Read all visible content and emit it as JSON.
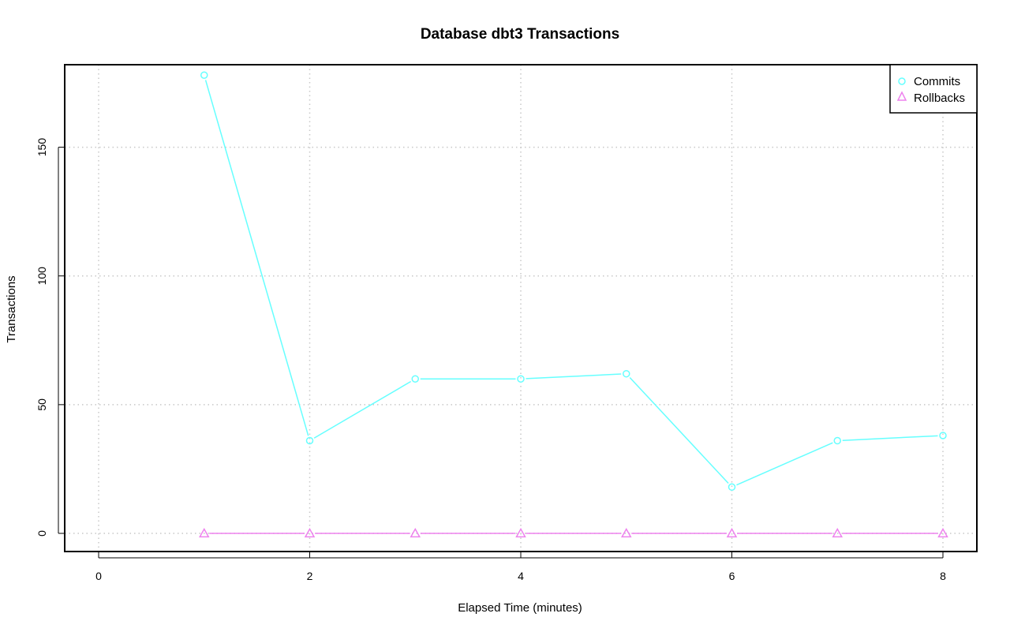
{
  "chart_data": {
    "type": "line",
    "title": "Database dbt3 Transactions",
    "xlabel": "Elapsed Time (minutes)",
    "ylabel": "Transactions",
    "xlim": [
      0,
      8
    ],
    "ylim": [
      0,
      175
    ],
    "x_ticks": [
      0,
      2,
      4,
      6,
      8
    ],
    "y_ticks": [
      0,
      50,
      100,
      150
    ],
    "grid": true,
    "legend_position": "top-right",
    "x": [
      1,
      2,
      3,
      4,
      5,
      6,
      7,
      8
    ],
    "series": [
      {
        "name": "Commits",
        "values": [
          178,
          36,
          60,
          60,
          62,
          18,
          36,
          38
        ],
        "color": "#66ffff",
        "marker": "circle"
      },
      {
        "name": "Rollbacks",
        "values": [
          0,
          0,
          0,
          0,
          0,
          0,
          0,
          0
        ],
        "color": "#ee82ee",
        "marker": "triangle"
      }
    ]
  }
}
